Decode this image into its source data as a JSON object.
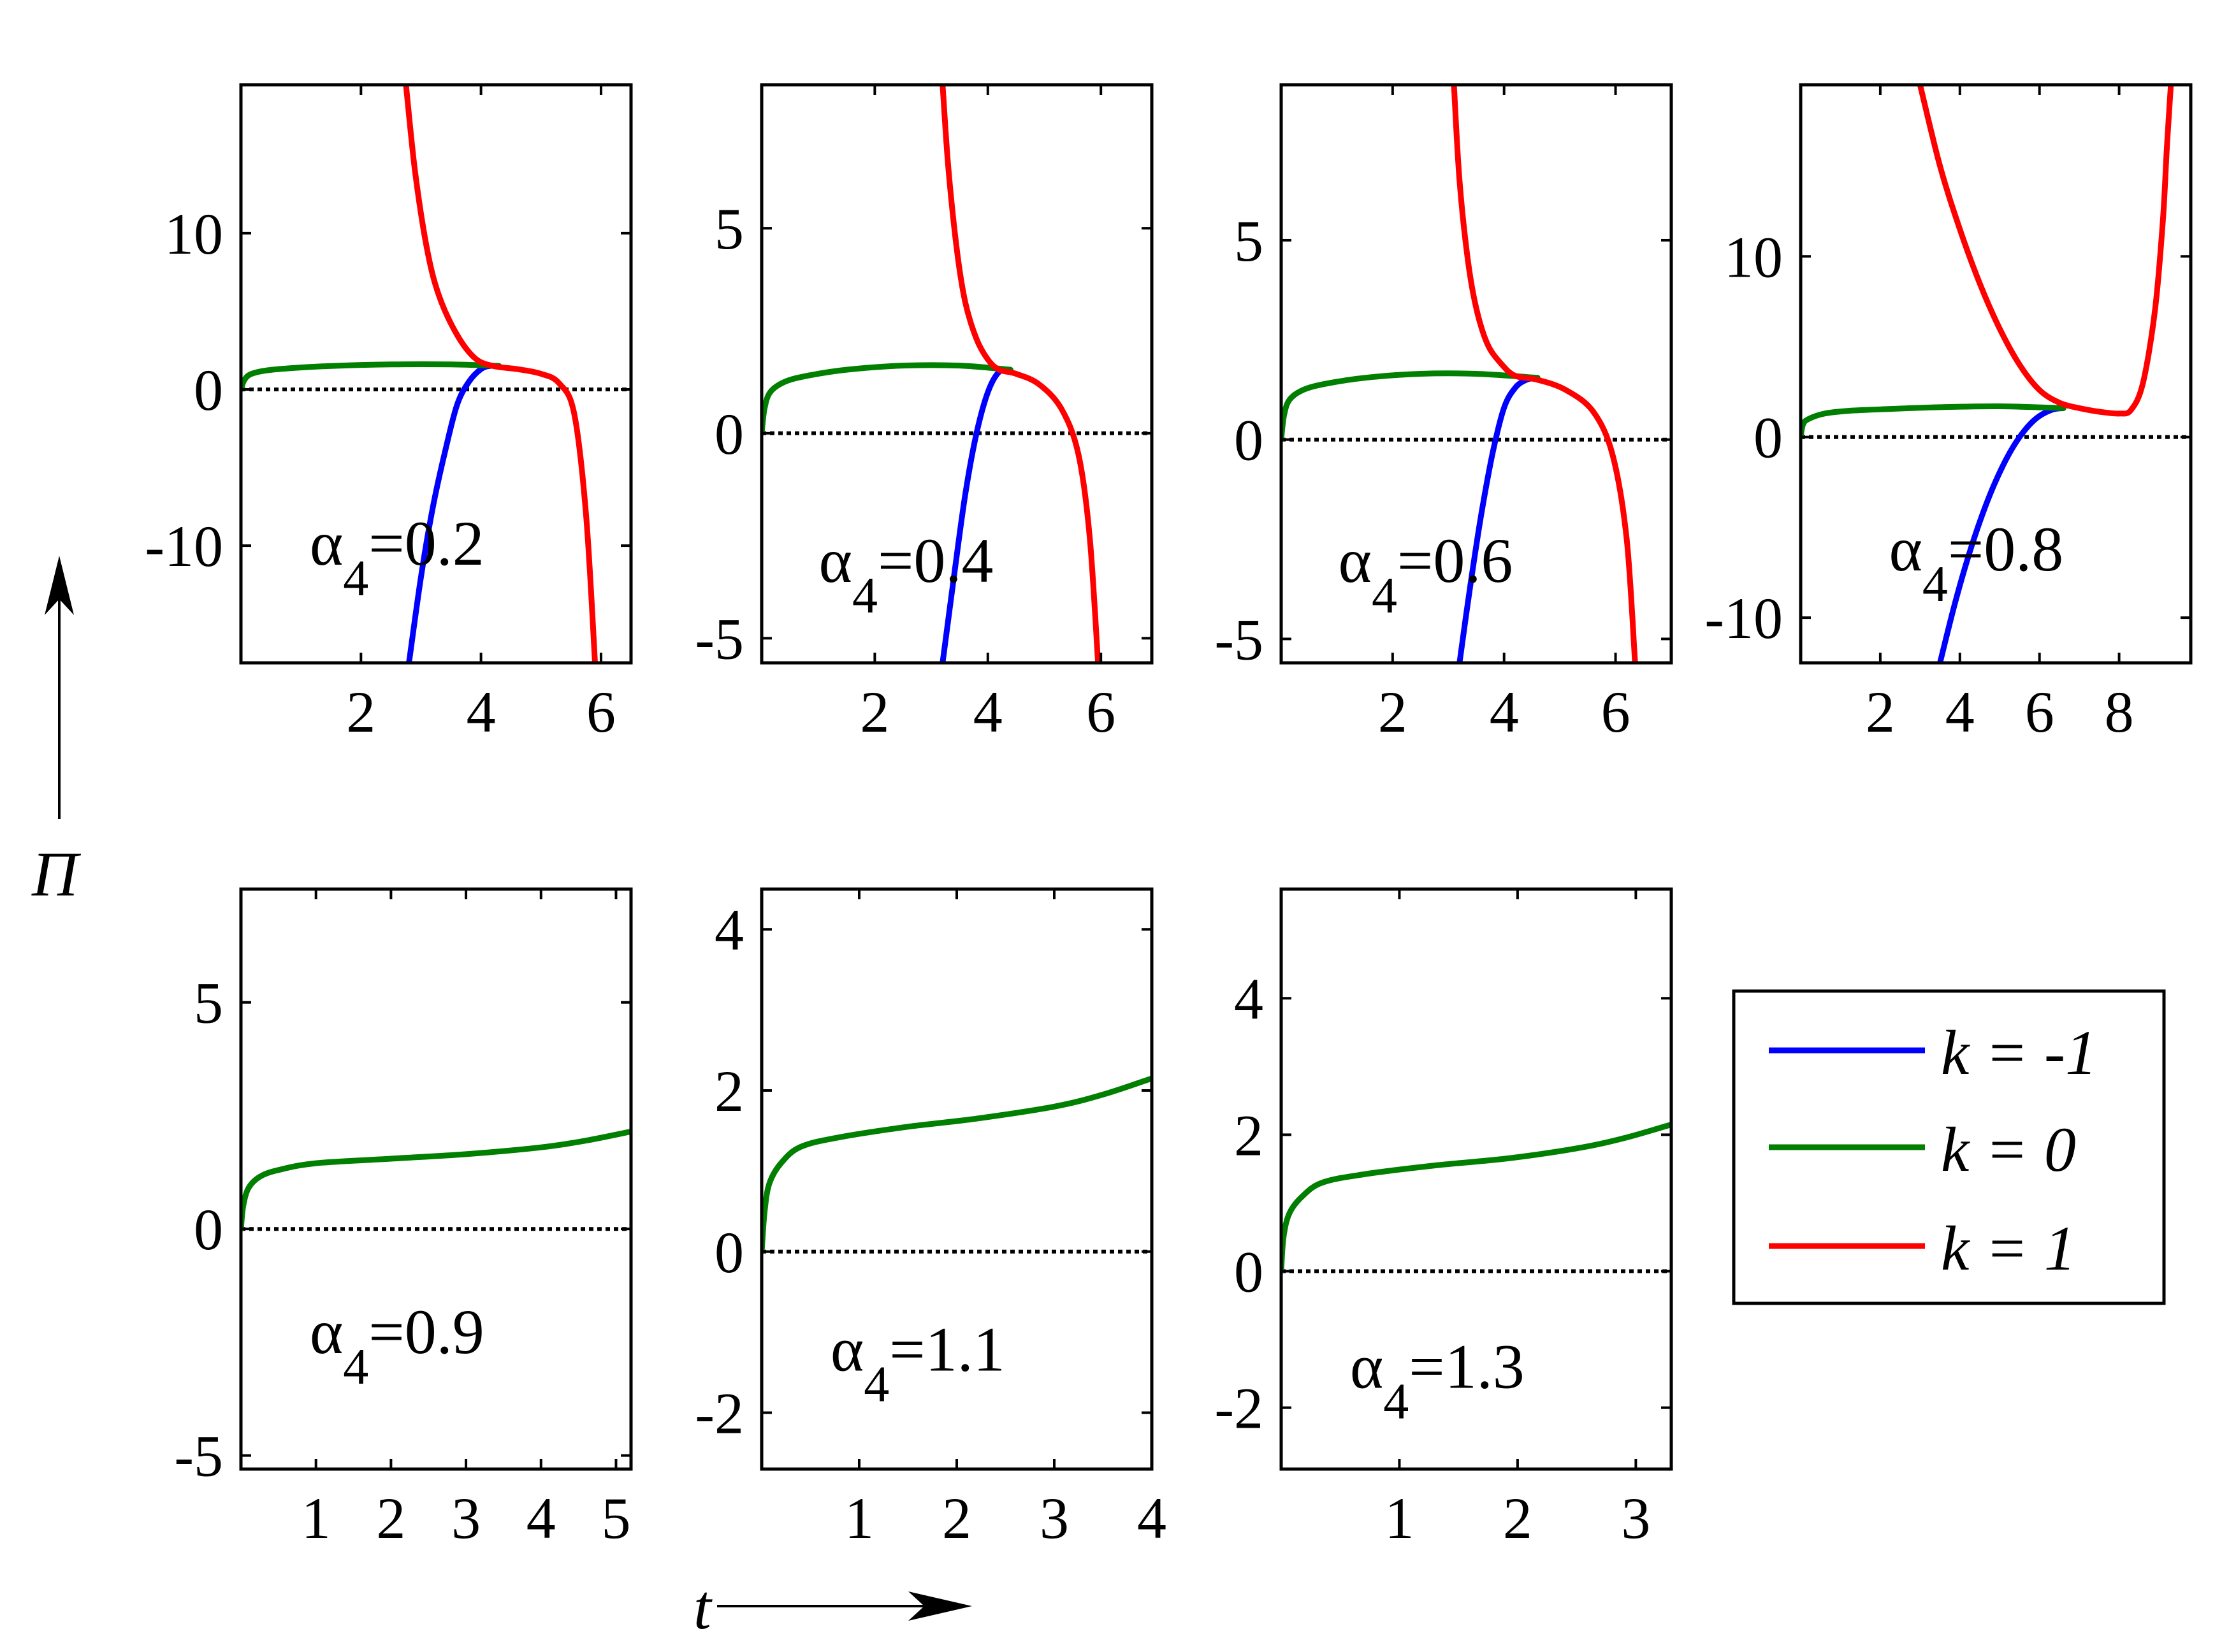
{
  "chart_data": [
    {
      "type": "line",
      "label": "α4=0.2",
      "xticks": [
        "2",
        "4",
        "6"
      ],
      "yticks": [
        "-10",
        "0",
        "10"
      ],
      "xlim": [
        0,
        6.5
      ],
      "ylim": [
        -17.5,
        19.5
      ],
      "series": [
        {
          "name": "k = -1",
          "color": "#0000ff",
          "x": [
            2.8,
            3.0,
            3.2,
            3.4,
            3.6,
            3.8,
            4.0,
            4.15,
            4.3
          ],
          "y": [
            -17.5,
            -12.0,
            -7.5,
            -4.0,
            -1.0,
            0.5,
            1.3,
            1.5,
            1.5
          ]
        },
        {
          "name": "k = 0",
          "color": "#007f00",
          "x": [
            0.0,
            0.05,
            0.15,
            0.4,
            0.8,
            1.5,
            2.5,
            3.5,
            4.3
          ],
          "y": [
            0.0,
            0.55,
            0.95,
            1.2,
            1.35,
            1.5,
            1.6,
            1.6,
            1.5
          ]
        },
        {
          "name": "k = 1",
          "color": "#ff0000",
          "x": [
            2.75,
            2.9,
            3.1,
            3.3,
            3.6,
            3.9,
            4.2,
            4.6,
            5.0,
            5.3,
            5.55,
            5.75,
            5.9
          ],
          "y": [
            19.5,
            14.0,
            9.0,
            6.0,
            3.5,
            2.0,
            1.5,
            1.3,
            1.0,
            0.4,
            -1.5,
            -8.0,
            -17.5
          ]
        }
      ]
    },
    {
      "type": "line",
      "label": "α4=0.4",
      "xticks": [
        "2",
        "4",
        "6"
      ],
      "yticks": [
        "-5",
        "0",
        "5"
      ],
      "xlim": [
        0,
        6.9
      ],
      "ylim": [
        -5.6,
        8.5
      ],
      "series": [
        {
          "name": "k = -1",
          "color": "#0000ff",
          "x": [
            3.2,
            3.4,
            3.6,
            3.8,
            4.0,
            4.2,
            4.4
          ],
          "y": [
            -5.6,
            -3.5,
            -1.5,
            0.0,
            1.0,
            1.5,
            1.55
          ]
        },
        {
          "name": "k = 0",
          "color": "#007f00",
          "x": [
            0.0,
            0.05,
            0.15,
            0.4,
            0.8,
            1.5,
            2.5,
            3.5,
            4.4
          ],
          "y": [
            0.0,
            0.6,
            1.0,
            1.25,
            1.4,
            1.55,
            1.65,
            1.65,
            1.55
          ]
        },
        {
          "name": "k = 1",
          "color": "#ff0000",
          "x": [
            3.2,
            3.3,
            3.45,
            3.6,
            3.8,
            4.0,
            4.2,
            4.5,
            4.9,
            5.3,
            5.6,
            5.8,
            5.95
          ],
          "y": [
            8.5,
            6.5,
            4.5,
            3.2,
            2.3,
            1.8,
            1.55,
            1.45,
            1.2,
            0.6,
            -0.5,
            -2.5,
            -5.6
          ]
        }
      ]
    },
    {
      "type": "line",
      "label": "α4=0.6",
      "xticks": [
        "2",
        "4",
        "6"
      ],
      "yticks": [
        "-5",
        "0",
        "5"
      ],
      "xlim": [
        0,
        7.0
      ],
      "ylim": [
        -5.6,
        8.9
      ],
      "series": [
        {
          "name": "k = -1",
          "color": "#0000ff",
          "x": [
            3.2,
            3.4,
            3.6,
            3.8,
            4.0,
            4.2,
            4.4,
            4.6
          ],
          "y": [
            -5.6,
            -3.6,
            -1.8,
            -0.3,
            0.8,
            1.3,
            1.5,
            1.55
          ]
        },
        {
          "name": "k = 0",
          "color": "#007f00",
          "x": [
            0.0,
            0.05,
            0.15,
            0.4,
            0.8,
            1.5,
            2.5,
            3.5,
            4.6
          ],
          "y": [
            0.0,
            0.6,
            1.0,
            1.25,
            1.4,
            1.55,
            1.65,
            1.65,
            1.55
          ]
        },
        {
          "name": "k = 1",
          "color": "#ff0000",
          "x": [
            3.1,
            3.2,
            3.35,
            3.5,
            3.7,
            3.95,
            4.2,
            4.6,
            5.1,
            5.6,
            5.95,
            6.2,
            6.35
          ],
          "y": [
            8.9,
            6.5,
            4.5,
            3.3,
            2.4,
            1.9,
            1.6,
            1.5,
            1.25,
            0.7,
            -0.4,
            -2.5,
            -5.6
          ]
        }
      ]
    },
    {
      "type": "line",
      "label": "α4=0.8",
      "xticks": [
        "2",
        "4",
        "6",
        "8"
      ],
      "yticks": [
        "-10",
        "0",
        "10"
      ],
      "xlim": [
        0,
        9.8
      ],
      "ylim": [
        -12.5,
        19.5
      ],
      "series": [
        {
          "name": "k = -1",
          "color": "#0000ff",
          "x": [
            3.5,
            3.9,
            4.3,
            4.7,
            5.1,
            5.5,
            5.9,
            6.3,
            6.6
          ],
          "y": [
            -12.5,
            -9.0,
            -6.0,
            -3.5,
            -1.5,
            0.0,
            1.0,
            1.5,
            1.6
          ]
        },
        {
          "name": "k = 0",
          "color": "#007f00",
          "x": [
            0.0,
            0.06,
            0.2,
            0.6,
            1.2,
            2.2,
            3.5,
            5.0,
            6.6
          ],
          "y": [
            0.0,
            0.7,
            1.0,
            1.3,
            1.45,
            1.55,
            1.65,
            1.7,
            1.6
          ]
        },
        {
          "name": "k = 1",
          "color": "#ff0000",
          "x": [
            3.0,
            3.5,
            4.0,
            4.5,
            5.0,
            5.5,
            6.0,
            6.5,
            7.0,
            7.5,
            8.0,
            8.3,
            8.6,
            8.9,
            9.1,
            9.2,
            9.3
          ],
          "y": [
            19.5,
            15.0,
            11.5,
            8.5,
            6.0,
            4.0,
            2.6,
            1.9,
            1.6,
            1.4,
            1.3,
            1.5,
            3.0,
            7.0,
            12.0,
            16.0,
            19.5
          ]
        }
      ]
    },
    {
      "type": "line",
      "label": "α4=0.9",
      "xticks": [
        "1",
        "2",
        "3",
        "4",
        "5"
      ],
      "yticks": [
        "-5",
        "0",
        "5"
      ],
      "xlim": [
        0,
        5.2
      ],
      "ylim": [
        -5.3,
        7.5
      ],
      "series": [
        {
          "name": "k = 0",
          "color": "#007f00",
          "x": [
            0.0,
            0.03,
            0.1,
            0.25,
            0.5,
            1.0,
            2.0,
            3.0,
            4.0,
            4.6,
            5.2
          ],
          "y": [
            0.0,
            0.5,
            0.9,
            1.15,
            1.3,
            1.45,
            1.55,
            1.65,
            1.8,
            1.95,
            2.15
          ]
        }
      ]
    },
    {
      "type": "line",
      "label": "α4=1.1",
      "xticks": [
        "1",
        "2",
        "3",
        "4"
      ],
      "yticks": [
        "-2",
        "0",
        "2",
        "4"
      ],
      "xlim": [
        0,
        4.0
      ],
      "ylim": [
        -2.7,
        4.5
      ],
      "series": [
        {
          "name": "k = 0",
          "color": "#007f00",
          "x": [
            0.0,
            0.03,
            0.08,
            0.2,
            0.4,
            0.8,
            1.5,
            2.2,
            3.0,
            3.5,
            4.0
          ],
          "y": [
            0.0,
            0.5,
            0.85,
            1.1,
            1.3,
            1.42,
            1.55,
            1.65,
            1.8,
            1.95,
            2.15
          ]
        }
      ]
    },
    {
      "type": "line",
      "label": "α4=1.3",
      "xticks": [
        "1",
        "2",
        "3"
      ],
      "yticks": [
        "-2",
        "0",
        "2",
        "4"
      ],
      "xlim": [
        0,
        3.3
      ],
      "ylim": [
        -2.9,
        5.6
      ],
      "series": [
        {
          "name": "k = 0",
          "color": "#007f00",
          "x": [
            0.0,
            0.02,
            0.07,
            0.18,
            0.35,
            0.7,
            1.3,
            1.9,
            2.5,
            2.9,
            3.3
          ],
          "y": [
            0.0,
            0.5,
            0.85,
            1.1,
            1.3,
            1.42,
            1.55,
            1.65,
            1.8,
            1.95,
            2.15
          ]
        }
      ]
    }
  ],
  "axes": {
    "ylabel": "Π",
    "xlabel": "t"
  },
  "legend": {
    "placement": "bottom-right",
    "items": [
      {
        "label": "k = -1",
        "color": "#0000ff"
      },
      {
        "label": "k = 0",
        "color": "#007f00"
      },
      {
        "label": "k = 1",
        "color": "#ff0000"
      }
    ]
  }
}
